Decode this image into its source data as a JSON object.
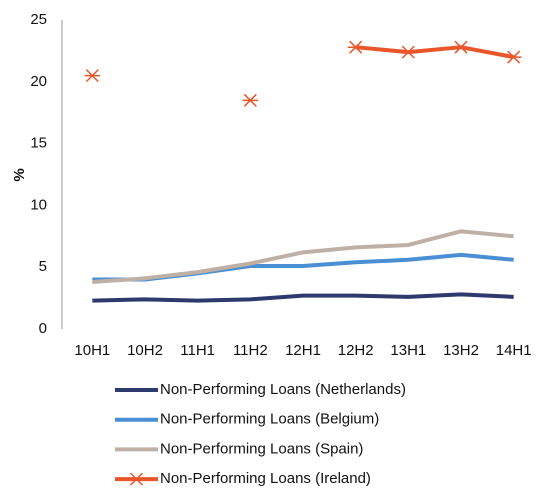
{
  "chart_data": {
    "type": "line",
    "y_label": "%",
    "categories": [
      "10H1",
      "10H2",
      "11H1",
      "11H2",
      "12H1",
      "12H2",
      "13H1",
      "13H2",
      "14H1"
    ],
    "series": [
      {
        "name": "Non-Performing Loans (Netherlands)",
        "color": "#2e3a6e",
        "values": [
          2.3,
          2.4,
          2.3,
          2.4,
          2.7,
          2.7,
          2.6,
          2.8,
          2.6
        ]
      },
      {
        "name": "Non-Performing Loans (Belgium)",
        "color": "#4a8fd4",
        "values": [
          4.0,
          4.0,
          4.5,
          5.1,
          5.1,
          5.4,
          5.6,
          6.0,
          5.6
        ]
      },
      {
        "name": "Non-Performing Loans (Spain)",
        "color": "#bfb0a6",
        "values": [
          3.8,
          4.1,
          4.6,
          5.3,
          6.2,
          6.6,
          6.8,
          7.9,
          7.5
        ]
      },
      {
        "name": "Non-Performing Loans (Ireland)",
        "color": "#e8562a",
        "marker": "asterisk",
        "values": [
          20.5,
          null,
          null,
          18.5,
          null,
          22.8,
          22.4,
          22.8,
          22.0
        ]
      }
    ],
    "ylim": [
      0,
      25
    ],
    "yticks": [
      0,
      5,
      10,
      15,
      20,
      25
    ],
    "grid": false,
    "legend": "bottom"
  }
}
